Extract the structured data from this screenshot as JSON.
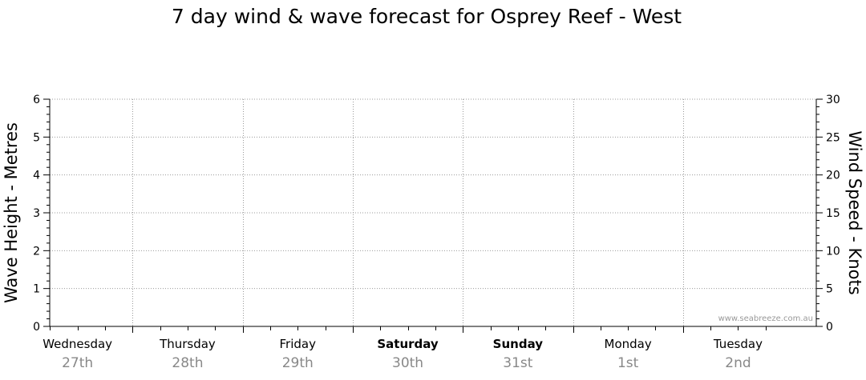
{
  "chart_data": {
    "type": "line",
    "title": "7 day wind & wave forecast for Osprey Reef - West",
    "ylabel_left": "Wave Height - Metres",
    "ylabel_right": "Wind Speed - Knots",
    "ylim_left": [
      0,
      6
    ],
    "ylim_right": [
      0,
      30
    ],
    "yticks_left": [
      "0",
      "1",
      "2",
      "3",
      "4",
      "5",
      "6"
    ],
    "yticks_right": [
      "0",
      "5",
      "10",
      "15",
      "20",
      "25",
      "30"
    ],
    "grid": true,
    "days": [
      {
        "name": "Wednesday",
        "date": "27th",
        "weekend": false
      },
      {
        "name": "Thursday",
        "date": "28th",
        "weekend": false
      },
      {
        "name": "Friday",
        "date": "29th",
        "weekend": false
      },
      {
        "name": "Saturday",
        "date": "30th",
        "weekend": true
      },
      {
        "name": "Sunday",
        "date": "31st",
        "weekend": true
      },
      {
        "name": "Monday",
        "date": "1st",
        "weekend": false
      },
      {
        "name": "Tuesday",
        "date": "2nd",
        "weekend": false
      }
    ],
    "series": [],
    "watermark": "www.seabreeze.com.au"
  },
  "colors": {
    "grid": "#999999",
    "axis": "#000000",
    "date_text": "#888888"
  }
}
